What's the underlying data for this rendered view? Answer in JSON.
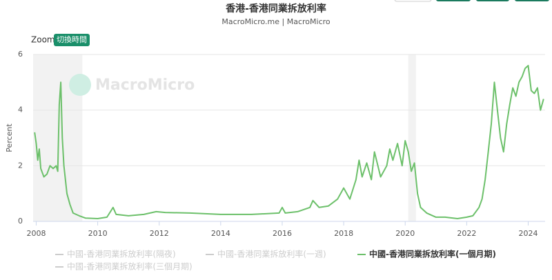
{
  "chart_data": {
    "type": "line",
    "title": "香港-香港同業拆放利率",
    "subtitle": "MacroMicro.me | MacroMicro",
    "zoom_label": "Zoom",
    "zoom_button": "切換時間",
    "watermark": "MacroMicro",
    "y_label": "Percent",
    "xlim": [
      2007.9,
      2024.55
    ],
    "xticks": [
      2008,
      2010,
      2012,
      2014,
      2016,
      2018,
      2020,
      2022,
      2024
    ],
    "ylim": [
      0,
      6
    ],
    "yticks": [
      0,
      2,
      4,
      6
    ],
    "grid": true,
    "shaded_ranges": [
      [
        2007.9,
        2009.5
      ],
      [
        2020.1,
        2020.35
      ]
    ],
    "x": [
      2007.95,
      2008.0,
      2008.05,
      2008.1,
      2008.15,
      2008.25,
      2008.35,
      2008.45,
      2008.55,
      2008.65,
      2008.7,
      2008.75,
      2008.8,
      2008.85,
      2008.9,
      2008.95,
      2009.0,
      2009.1,
      2009.2,
      2009.4,
      2009.6,
      2010.0,
      2010.3,
      2010.5,
      2010.6,
      2011.0,
      2011.5,
      2011.9,
      2012.2,
      2013.0,
      2014.0,
      2015.0,
      2015.9,
      2016.0,
      2016.1,
      2016.5,
      2016.9,
      2017.0,
      2017.2,
      2017.5,
      2017.8,
      2018.0,
      2018.2,
      2018.4,
      2018.5,
      2018.6,
      2018.75,
      2018.9,
      2019.0,
      2019.2,
      2019.4,
      2019.5,
      2019.6,
      2019.75,
      2019.9,
      2020.0,
      2020.1,
      2020.2,
      2020.3,
      2020.4,
      2020.5,
      2020.7,
      2021.0,
      2021.3,
      2021.7,
      2022.0,
      2022.2,
      2022.4,
      2022.5,
      2022.6,
      2022.7,
      2022.8,
      2022.9,
      2023.0,
      2023.1,
      2023.2,
      2023.3,
      2023.4,
      2023.5,
      2023.6,
      2023.7,
      2023.8,
      2023.9,
      2024.0,
      2024.1,
      2024.2,
      2024.3,
      2024.4,
      2024.5
    ],
    "series": [
      {
        "name": "中國-香港同業拆放利率(隔夜)",
        "color": "#cccccc",
        "visible": false
      },
      {
        "name": "中國-香港同業拆放利率(一週)",
        "color": "#cccccc",
        "visible": false
      },
      {
        "name": "中國-香港同業拆放利率(一個月期)",
        "color": "#6cc06a",
        "visible": true,
        "values": [
          3.2,
          2.8,
          2.2,
          2.6,
          1.9,
          1.6,
          1.7,
          2.0,
          1.9,
          2.0,
          1.8,
          4.2,
          5.0,
          3.0,
          2.0,
          1.5,
          1.0,
          0.6,
          0.3,
          0.2,
          0.12,
          0.1,
          0.15,
          0.5,
          0.25,
          0.2,
          0.25,
          0.35,
          0.32,
          0.3,
          0.25,
          0.25,
          0.3,
          0.5,
          0.3,
          0.35,
          0.5,
          0.75,
          0.5,
          0.55,
          0.8,
          1.2,
          0.8,
          1.5,
          2.2,
          1.6,
          2.1,
          1.5,
          2.5,
          1.6,
          2.0,
          2.6,
          2.2,
          2.8,
          2.0,
          2.9,
          2.5,
          1.8,
          2.1,
          1.0,
          0.5,
          0.3,
          0.15,
          0.15,
          0.1,
          0.15,
          0.2,
          0.5,
          0.8,
          1.5,
          2.5,
          3.5,
          5.0,
          4.0,
          3.0,
          2.5,
          3.5,
          4.2,
          4.8,
          4.5,
          5.0,
          5.2,
          5.5,
          5.6,
          4.7,
          4.6,
          4.8,
          4.0,
          4.4
        ]
      },
      {
        "name": "中國-香港同業拆放利率(三個月期)",
        "color": "#cccccc",
        "visible": false
      }
    ]
  }
}
